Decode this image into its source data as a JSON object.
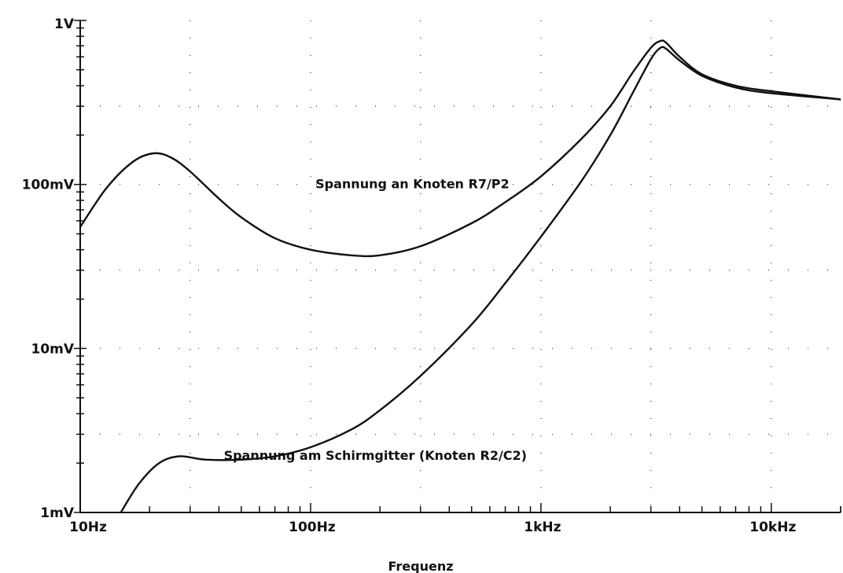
{
  "chart_data": {
    "type": "line",
    "title": "",
    "xlabel": "Frequenz",
    "ylabel": "",
    "x_scale": "log",
    "y_scale": "log",
    "xlim": [
      10,
      20000
    ],
    "ylim": [
      0.001,
      1
    ],
    "grid": "dotted",
    "x_ticks": [
      {
        "value": 10,
        "label": "10Hz"
      },
      {
        "value": 100,
        "label": "100Hz"
      },
      {
        "value": 1000,
        "label": "1kHz"
      },
      {
        "value": 10000,
        "label": "10kHz"
      }
    ],
    "y_ticks": [
      {
        "value": 1,
        "label": "1V"
      },
      {
        "value": 0.1,
        "label": "100mV"
      },
      {
        "value": 0.01,
        "label": "10mV"
      },
      {
        "value": 0.001,
        "label": "1mV"
      }
    ],
    "series": [
      {
        "name": "Spannung an Knoten R7/P2",
        "points": [
          [
            10,
            0.055
          ],
          [
            13,
            0.095
          ],
          [
            17,
            0.138
          ],
          [
            21,
            0.155
          ],
          [
            25,
            0.145
          ],
          [
            30,
            0.12
          ],
          [
            40,
            0.082
          ],
          [
            50,
            0.063
          ],
          [
            70,
            0.047
          ],
          [
            100,
            0.04
          ],
          [
            150,
            0.037
          ],
          [
            200,
            0.037
          ],
          [
            300,
            0.042
          ],
          [
            500,
            0.058
          ],
          [
            700,
            0.078
          ],
          [
            1000,
            0.112
          ],
          [
            1500,
            0.19
          ],
          [
            2000,
            0.3
          ],
          [
            2500,
            0.48
          ],
          [
            3000,
            0.68
          ],
          [
            3300,
            0.75
          ],
          [
            3500,
            0.73
          ],
          [
            4000,
            0.6
          ],
          [
            5000,
            0.47
          ],
          [
            7000,
            0.4
          ],
          [
            10000,
            0.37
          ],
          [
            20000,
            0.33
          ]
        ]
      },
      {
        "name": "Spannung am Schirmgitter (Knoten R2/C2)",
        "points": [
          [
            15,
            0.001
          ],
          [
            18,
            0.0015
          ],
          [
            22,
            0.002
          ],
          [
            27,
            0.0022
          ],
          [
            35,
            0.0021
          ],
          [
            50,
            0.0021
          ],
          [
            70,
            0.0022
          ],
          [
            100,
            0.0025
          ],
          [
            150,
            0.0032
          ],
          [
            200,
            0.0042
          ],
          [
            300,
            0.0068
          ],
          [
            500,
            0.014
          ],
          [
            700,
            0.025
          ],
          [
            1000,
            0.048
          ],
          [
            1500,
            0.105
          ],
          [
            2000,
            0.2
          ],
          [
            2500,
            0.36
          ],
          [
            3000,
            0.58
          ],
          [
            3300,
            0.68
          ],
          [
            3500,
            0.67
          ],
          [
            4000,
            0.57
          ],
          [
            5000,
            0.46
          ],
          [
            7000,
            0.39
          ],
          [
            10000,
            0.36
          ],
          [
            20000,
            0.33
          ]
        ]
      }
    ],
    "annotations": [
      {
        "text": "Spannung an Knoten R7/P2",
        "x": 105,
        "y": 0.095
      },
      {
        "text": "Spannung am Schirmgitter (Knoten R2/C2)",
        "x": 42,
        "y": 0.0021
      }
    ],
    "line_color": "#111111"
  }
}
